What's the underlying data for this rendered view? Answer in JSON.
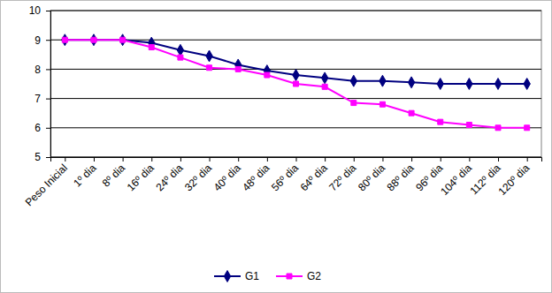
{
  "chart_data": {
    "type": "line",
    "categories": [
      "Peso Inicial",
      "1º dia",
      "8º dia",
      "16º dia",
      "24º dia",
      "32º dia",
      "40º dia",
      "48º dia",
      "56º dia",
      "64º dia",
      "72º dia",
      "80º dia",
      "88º dia",
      "96º dia",
      "104º dia",
      "112º dia",
      "120º dia"
    ],
    "series": [
      {
        "name": "G1",
        "color": "#000080",
        "marker": "diamond",
        "line_style": "solid",
        "values": [
          9,
          9,
          9,
          8.9,
          8.65,
          8.45,
          8.15,
          7.95,
          7.8,
          7.7,
          7.6,
          7.6,
          7.55,
          7.5,
          7.5,
          7.5,
          7.5
        ]
      },
      {
        "name": "G2",
        "color": "#ff00ff",
        "marker": "square",
        "line_style": "solid",
        "values": [
          9,
          9,
          9,
          8.75,
          8.4,
          8.05,
          8.0,
          7.8,
          7.5,
          7.4,
          6.85,
          6.8,
          6.5,
          6.2,
          6.1,
          6.0,
          6.0
        ]
      }
    ],
    "ylim": [
      5,
      10
    ],
    "yticks": [
      5,
      6,
      7,
      8,
      9,
      10
    ],
    "grid": true,
    "legend": "bottom"
  }
}
